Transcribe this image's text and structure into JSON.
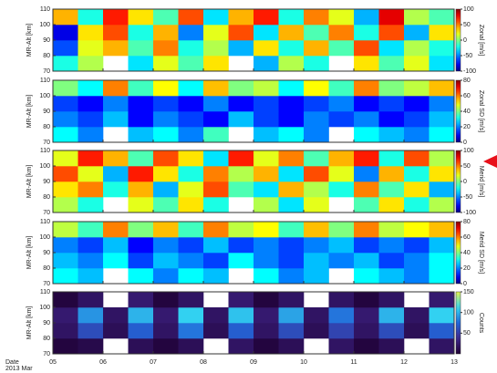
{
  "chart_data": [
    {
      "type": "heatmap",
      "ylabel": "MR-Alt [km]",
      "colorbar_label": "Zonal [m/s]",
      "colormap": "jet",
      "xlim": [
        5,
        13
      ],
      "ylim": [
        70,
        110
      ],
      "yticks": [
        70,
        80,
        90,
        100,
        110
      ],
      "clim": [
        -100,
        100
      ],
      "cticks": [
        100,
        50,
        0,
        -50,
        -100
      ],
      "xbins": [
        5,
        5.5,
        6,
        6.5,
        7,
        7.5,
        8,
        8.5,
        9,
        9.5,
        10,
        10.5,
        11,
        11.5,
        12,
        12.5,
        13
      ],
      "ybins": [
        70,
        80,
        90,
        100,
        110
      ],
      "values": [
        [
          -20,
          10,
          null,
          -30,
          20,
          -10,
          30,
          null,
          -40,
          10,
          -20,
          null,
          30,
          -10,
          20,
          -30
        ],
        [
          -60,
          20,
          40,
          -10,
          50,
          -20,
          10,
          -40,
          30,
          -20,
          40,
          -10,
          60,
          -30,
          10,
          -20
        ],
        [
          -80,
          30,
          60,
          -20,
          40,
          -50,
          20,
          60,
          -30,
          40,
          -10,
          50,
          -20,
          60,
          -40,
          30
        ],
        [
          40,
          -20,
          70,
          30,
          -10,
          60,
          -30,
          40,
          70,
          -20,
          50,
          20,
          -40,
          80,
          10,
          -10
        ]
      ]
    },
    {
      "type": "heatmap",
      "ylabel": "MR-Alt [km]",
      "colorbar_label": "Zonal SD [m/s]",
      "colormap": "jet",
      "xlim": [
        5,
        13
      ],
      "ylim": [
        70,
        110
      ],
      "yticks": [
        70,
        80,
        90,
        100,
        110
      ],
      "clim": [
        0,
        80
      ],
      "cticks": [
        80,
        60,
        40,
        20,
        0
      ],
      "xbins": [
        5,
        5.5,
        6,
        6.5,
        7,
        7.5,
        8,
        8.5,
        9,
        9.5,
        10,
        10.5,
        11,
        11.5,
        12,
        12.5,
        13
      ],
      "ybins": [
        70,
        80,
        90,
        100,
        110
      ],
      "values": [
        [
          30,
          20,
          null,
          25,
          30,
          20,
          35,
          null,
          25,
          30,
          20,
          null,
          30,
          25,
          20,
          30
        ],
        [
          20,
          15,
          25,
          10,
          20,
          15,
          10,
          25,
          15,
          10,
          20,
          15,
          20,
          10,
          15,
          25
        ],
        [
          15,
          10,
          20,
          10,
          15,
          10,
          20,
          10,
          15,
          10,
          15,
          20,
          10,
          15,
          10,
          20
        ],
        [
          40,
          30,
          60,
          35,
          50,
          30,
          55,
          40,
          45,
          30,
          50,
          35,
          60,
          40,
          45,
          55
        ]
      ]
    },
    {
      "type": "heatmap",
      "ylabel": "MR-Alt [km]",
      "colorbar_label": "Merid [m/s]",
      "colormap": "jet",
      "xlim": [
        5,
        13
      ],
      "ylim": [
        70,
        110
      ],
      "yticks": [
        70,
        80,
        90,
        100,
        110
      ],
      "clim": [
        -100,
        100
      ],
      "cticks": [
        100,
        50,
        0,
        -50,
        -100
      ],
      "xbins": [
        5,
        5.5,
        6,
        6.5,
        7,
        7.5,
        8,
        8.5,
        9,
        9.5,
        10,
        10.5,
        11,
        11.5,
        12,
        12.5,
        13
      ],
      "ybins": [
        70,
        80,
        90,
        100,
        110
      ],
      "values": [
        [
          10,
          -20,
          null,
          20,
          -10,
          30,
          -20,
          null,
          10,
          -30,
          20,
          null,
          -10,
          30,
          -20,
          10
        ],
        [
          30,
          50,
          -20,
          40,
          -40,
          20,
          60,
          -10,
          -30,
          40,
          10,
          -20,
          50,
          -10,
          30,
          -40
        ],
        [
          60,
          20,
          -40,
          70,
          30,
          -20,
          50,
          10,
          40,
          -30,
          60,
          20,
          -50,
          40,
          -20,
          30
        ],
        [
          20,
          70,
          40,
          -10,
          60,
          30,
          -30,
          70,
          20,
          50,
          -10,
          40,
          70,
          -20,
          60,
          10
        ]
      ]
    },
    {
      "type": "heatmap",
      "ylabel": "MR-Alt [km]",
      "colorbar_label": "Merid SD [m/s]",
      "colormap": "jet",
      "xlim": [
        5,
        13
      ],
      "ylim": [
        70,
        110
      ],
      "yticks": [
        70,
        80,
        90,
        100,
        110
      ],
      "clim": [
        0,
        80
      ],
      "cticks": [
        80,
        60,
        40,
        20,
        0
      ],
      "xbins": [
        5,
        5.5,
        6,
        6.5,
        7,
        7.5,
        8,
        8.5,
        9,
        9.5,
        10,
        10.5,
        11,
        11.5,
        12,
        12.5,
        13
      ],
      "ybins": [
        70,
        80,
        90,
        100,
        110
      ],
      "values": [
        [
          30,
          25,
          null,
          30,
          20,
          30,
          25,
          null,
          30,
          20,
          25,
          null,
          30,
          25,
          20,
          30
        ],
        [
          25,
          20,
          30,
          15,
          25,
          20,
          15,
          30,
          20,
          15,
          25,
          20,
          25,
          15,
          20,
          30
        ],
        [
          20,
          15,
          25,
          10,
          20,
          15,
          25,
          15,
          20,
          15,
          20,
          25,
          15,
          20,
          15,
          25
        ],
        [
          45,
          35,
          60,
          40,
          55,
          35,
          60,
          45,
          50,
          35,
          55,
          40,
          60,
          45,
          50,
          55
        ]
      ]
    },
    {
      "type": "heatmap",
      "ylabel": "MR-Alt [km]",
      "colorbar_label": "Counts",
      "colormap": "dark",
      "xlim": [
        5,
        13
      ],
      "ylim": [
        70,
        110
      ],
      "yticks": [
        70,
        80,
        90,
        100,
        110
      ],
      "clim": [
        0,
        150
      ],
      "cticks": [
        150,
        100,
        50
      ],
      "xticks": [
        {
          "value": 5,
          "label": "05"
        },
        {
          "value": 6,
          "label": "06"
        },
        {
          "value": 7,
          "label": "07"
        },
        {
          "value": 8,
          "label": "08"
        },
        {
          "value": 9,
          "label": "09"
        },
        {
          "value": 10,
          "label": "10"
        },
        {
          "value": 11,
          "label": "11"
        },
        {
          "value": 12,
          "label": "12"
        },
        {
          "value": 13,
          "label": "13"
        }
      ],
      "xlabel": "Date",
      "xlabel_sub": "2013 Mar",
      "xbins": [
        5,
        5.5,
        6,
        6.5,
        7,
        7.5,
        8,
        8.5,
        9,
        9.5,
        10,
        10.5,
        11,
        11.5,
        12,
        12.5,
        13
      ],
      "ybins": [
        70,
        80,
        90,
        100,
        110
      ],
      "values": [
        [
          5,
          10,
          null,
          15,
          5,
          15,
          null,
          20,
          5,
          15,
          null,
          20,
          5,
          15,
          null,
          20
        ],
        [
          20,
          60,
          15,
          70,
          20,
          80,
          15,
          70,
          20,
          60,
          15,
          55,
          20,
          60,
          15,
          70
        ],
        [
          25,
          90,
          20,
          100,
          25,
          110,
          20,
          105,
          25,
          95,
          20,
          80,
          25,
          100,
          20,
          110
        ],
        [
          5,
          20,
          null,
          25,
          5,
          20,
          null,
          25,
          5,
          20,
          null,
          20,
          5,
          20,
          null,
          25
        ]
      ]
    }
  ]
}
